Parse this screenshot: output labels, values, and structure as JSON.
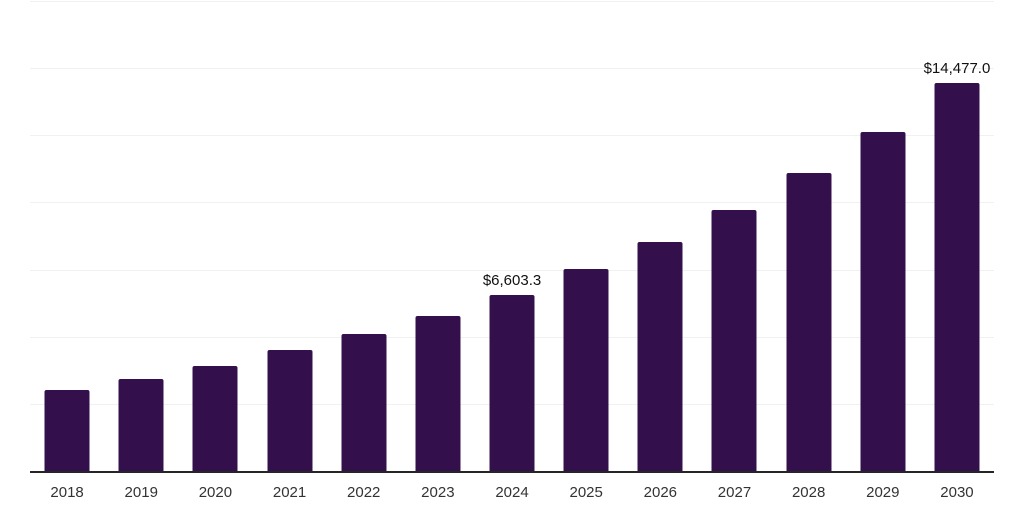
{
  "chart_data": {
    "type": "bar",
    "title": "",
    "xlabel": "",
    "ylabel": "",
    "categories": [
      "2018",
      "2019",
      "2020",
      "2021",
      "2022",
      "2023",
      "2024",
      "2025",
      "2026",
      "2027",
      "2028",
      "2029",
      "2030"
    ],
    "values": [
      3050,
      3480,
      3930,
      4540,
      5130,
      5810,
      6603.3,
      7550,
      8550,
      9760,
      11150,
      12670,
      14477.0
    ],
    "data_labels": {
      "2024": "$6,603.3",
      "2030": "$14,477.0"
    },
    "ylim": [
      0,
      17500
    ],
    "gridline_step": 2500,
    "grid": true,
    "legend": false,
    "bar_color": "#33104c",
    "axis_line_color": "#262626",
    "gridline_color": "#f1f1f1",
    "tick_label_color": "#333333",
    "data_label_color": "#111111"
  }
}
